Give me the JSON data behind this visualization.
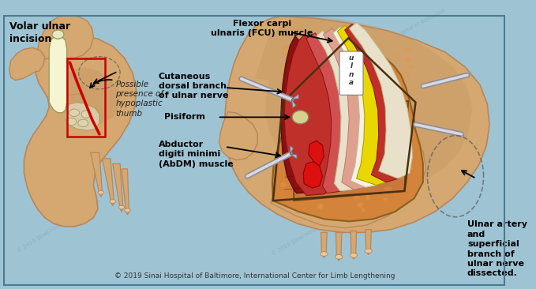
{
  "background_color": "#9ec4d4",
  "title_text": "© 2019 Sinai Hospital of Baltimore, International Center for Limb Lengthening",
  "title_fontsize": 6.5,
  "skin_color": "#d4a870",
  "skin_light": "#e8c99a",
  "skin_dark": "#b8865a",
  "skin_shadow": "#c09060",
  "bone_color": "#e8e8a0",
  "bone_light": "#f5f5d0",
  "muscle_red_dark": "#8b1010",
  "muscle_red": "#c0302a",
  "muscle_red_light": "#d05050",
  "tendon_cream": "#e8e0c8",
  "tendon_white": "#f5f0e0",
  "nerve_yellow": "#e8d800",
  "fat_orange": "#d4833a",
  "fat_light": "#e09848",
  "incision_red": "#cc0000",
  "label_color": "#000000",
  "watermark_color": "#7a9eb0",
  "border_color": "#4a7a90",
  "labels": {
    "volar_ulnar": "Volar ulnar\nincision",
    "possible": "Possible\npresence of\nhypoplastic\nthumb",
    "abductor": "Abductor\ndigiti minimi\n(AbDM) muscle",
    "pisiform": "Pisiform",
    "cutaneous": "Cutaneous\ndorsal branch\nof ulnar nerve",
    "fcu": "Flexor carpi\nulnaris (FCU) muscle",
    "ulnar_artery": "Ulnar artery\nand\nsuperficial\nbranch of\nulnar nerve\ndissected.",
    "ulna_label": "u\nl\nn\na"
  }
}
